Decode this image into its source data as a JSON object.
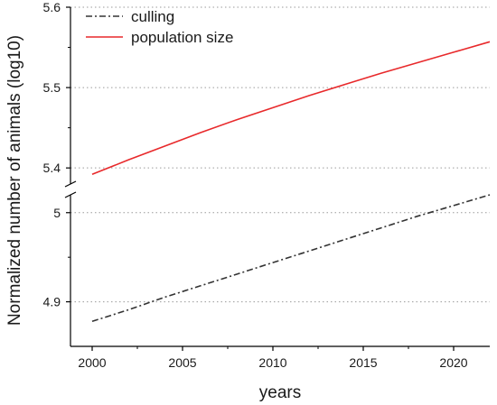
{
  "chart_data": {
    "type": "line",
    "xlabel": "years",
    "ylabel": "Normalized number of animals (log10)",
    "xlim": [
      1998.8,
      2022
    ],
    "x_ticks": [
      "2000",
      "2005",
      "2010",
      "2015",
      "2020"
    ],
    "y_axis_broken": true,
    "y_upper_segment": {
      "ylim": [
        5.38,
        5.6
      ],
      "ticks": [
        "5.4",
        "5.5",
        "5.6"
      ]
    },
    "y_lower_segment": {
      "ylim": [
        4.85,
        5.02
      ],
      "ticks": [
        "4.9",
        "5"
      ]
    },
    "grid": "horizontal dotted at major y ticks",
    "legend_position": "top-left",
    "series": [
      {
        "name": "culling",
        "segment": "lower",
        "color": "#333333",
        "dash": "dash-dot",
        "x": [
          2000,
          2002,
          2004,
          2006,
          2008,
          2010,
          2012,
          2014,
          2016,
          2018,
          2020,
          2022
        ],
        "y": [
          4.878,
          4.891,
          4.905,
          4.918,
          4.931,
          4.944,
          4.957,
          4.97,
          4.983,
          4.996,
          5.008,
          5.02
        ]
      },
      {
        "name": "population size",
        "segment": "upper",
        "color": "#e8292b",
        "dash": "solid",
        "x": [
          2000,
          2002,
          2004,
          2006,
          2008,
          2010,
          2012,
          2014,
          2016,
          2018,
          2020,
          2022
        ],
        "y": [
          5.392,
          5.41,
          5.427,
          5.444,
          5.46,
          5.475,
          5.49,
          5.504,
          5.518,
          5.531,
          5.544,
          5.557
        ]
      }
    ]
  }
}
